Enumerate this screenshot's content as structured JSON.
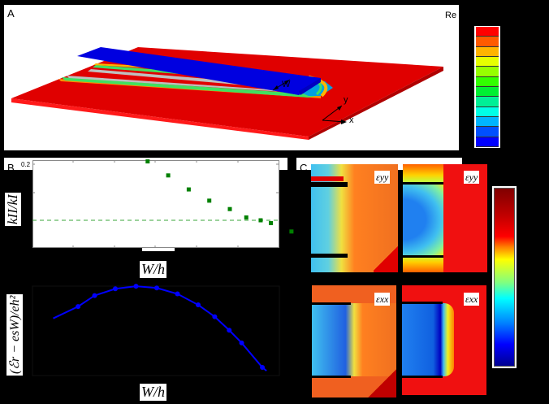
{
  "panel_a": {
    "letter": "A",
    "legend_partial": "Re",
    "dimension_label": "W",
    "axis_x": "x",
    "axis_y": "y",
    "legend_colors": [
      "#ff0000",
      "#ff5a00",
      "#ffb400",
      "#e6ff00",
      "#96ff00",
      "#32ff00",
      "#00f032",
      "#00f096",
      "#00ffe6",
      "#00b4ff",
      "#0050ff",
      "#0000ff"
    ]
  },
  "panel_b": {
    "letter": "B",
    "ytick_top": "0.2",
    "ylabel": "k_II / k_I",
    "ylabel_display": "kII/kI",
    "xlabel": "W/h"
  },
  "panel_lower": {
    "ylabel": "(ℰr − esW)/eh²",
    "xlabel": "W/h"
  },
  "panel_c": {
    "letter": "C",
    "labels": {
      "eyy_exp": "εyy",
      "eyy_sim": "εyy",
      "exx_exp": "εxx",
      "exx_sim": "εxx"
    }
  },
  "chart_data": [
    {
      "type": "scatter",
      "title": "",
      "xlabel": "W/h",
      "ylabel": "k_II/k_I",
      "ytick_labels": [
        "0.2"
      ],
      "x": [
        3,
        3.5,
        4,
        4.5,
        5,
        5.4,
        5.75,
        6,
        6.5
      ],
      "values": [
        0.21,
        0.16,
        0.11,
        0.07,
        0.04,
        0.01,
        0.0,
        -0.01,
        -0.04
      ],
      "reference_line": {
        "y": 0.0,
        "style": "dashed",
        "color": "#2ca02c"
      },
      "marker_color": "#008000",
      "ylim": [
        -0.1,
        0.2
      ],
      "grid": false
    },
    {
      "type": "line",
      "title": "",
      "xlabel": "W/h",
      "ylabel": "(E_r - esW)/eh^2",
      "x": [
        1.1,
        1.5,
        2.0,
        2.5,
        3.0,
        3.5,
        4.0,
        4.4,
        4.75,
        5.05,
        5.55
      ],
      "values": [
        0.62,
        0.75,
        0.83,
        0.86,
        0.84,
        0.77,
        0.64,
        0.5,
        0.34,
        0.19,
        -0.1
      ],
      "line_color": "#0000ff",
      "grid": false
    }
  ]
}
